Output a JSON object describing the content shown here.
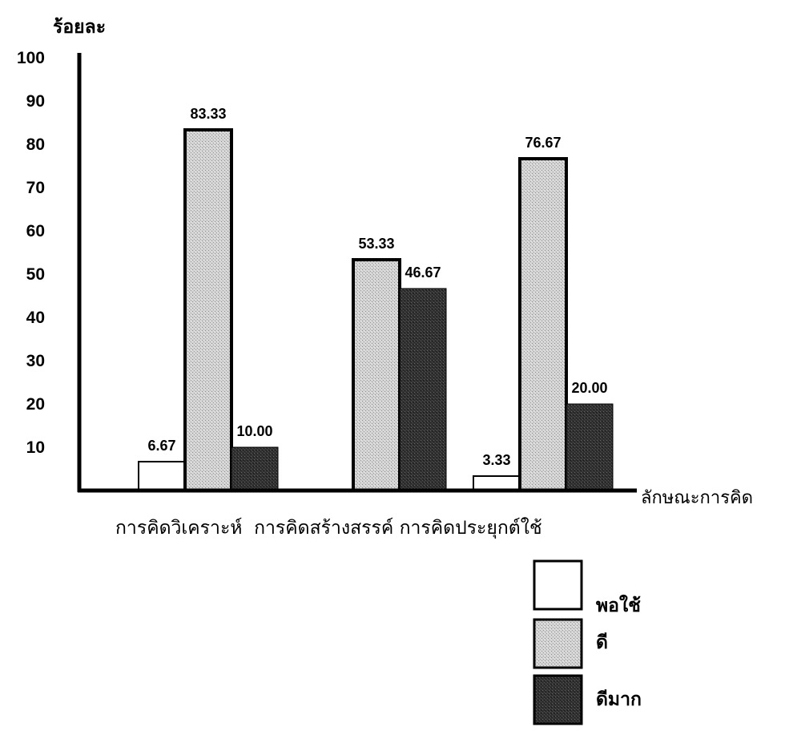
{
  "chart_data": {
    "type": "bar",
    "ylabel": "ร้อยละ",
    "xlabel": "ลักษณะการคิด",
    "categories": [
      "การคิดวิเคราะห์",
      "การคิดสร้างสรรค์",
      "การคิดประยุกต์ใช้"
    ],
    "categories_line": "การคิดวิเคราะห์  การคิดสร้างสรรค์ การคิดประยุกต์ใช้",
    "yticks": [
      10,
      20,
      30,
      40,
      50,
      60,
      70,
      80,
      90,
      100
    ],
    "ylim": [
      0,
      100
    ],
    "grid": false,
    "legend_position": "bottom-right",
    "series": [
      {
        "name": "พอใช้",
        "values": [
          6.67,
          null,
          3.33
        ],
        "labels": [
          "6.67",
          "",
          "3.33"
        ],
        "fill": "white"
      },
      {
        "name": "ดี",
        "values": [
          83.33,
          53.33,
          76.67
        ],
        "labels": [
          "83.33",
          "53.33",
          "76.67"
        ],
        "fill": "light-gray-texture"
      },
      {
        "name": "ดีมาก",
        "values": [
          10.0,
          46.67,
          20.0
        ],
        "labels": [
          "10.00",
          "46.67",
          "20.00"
        ],
        "fill": "dark-gray-texture"
      }
    ]
  },
  "colors": {
    "axis": "#000000",
    "series_light": "#c8c8c8",
    "series_dark": "#2b2b2b",
    "series_white": "#ffffff"
  }
}
